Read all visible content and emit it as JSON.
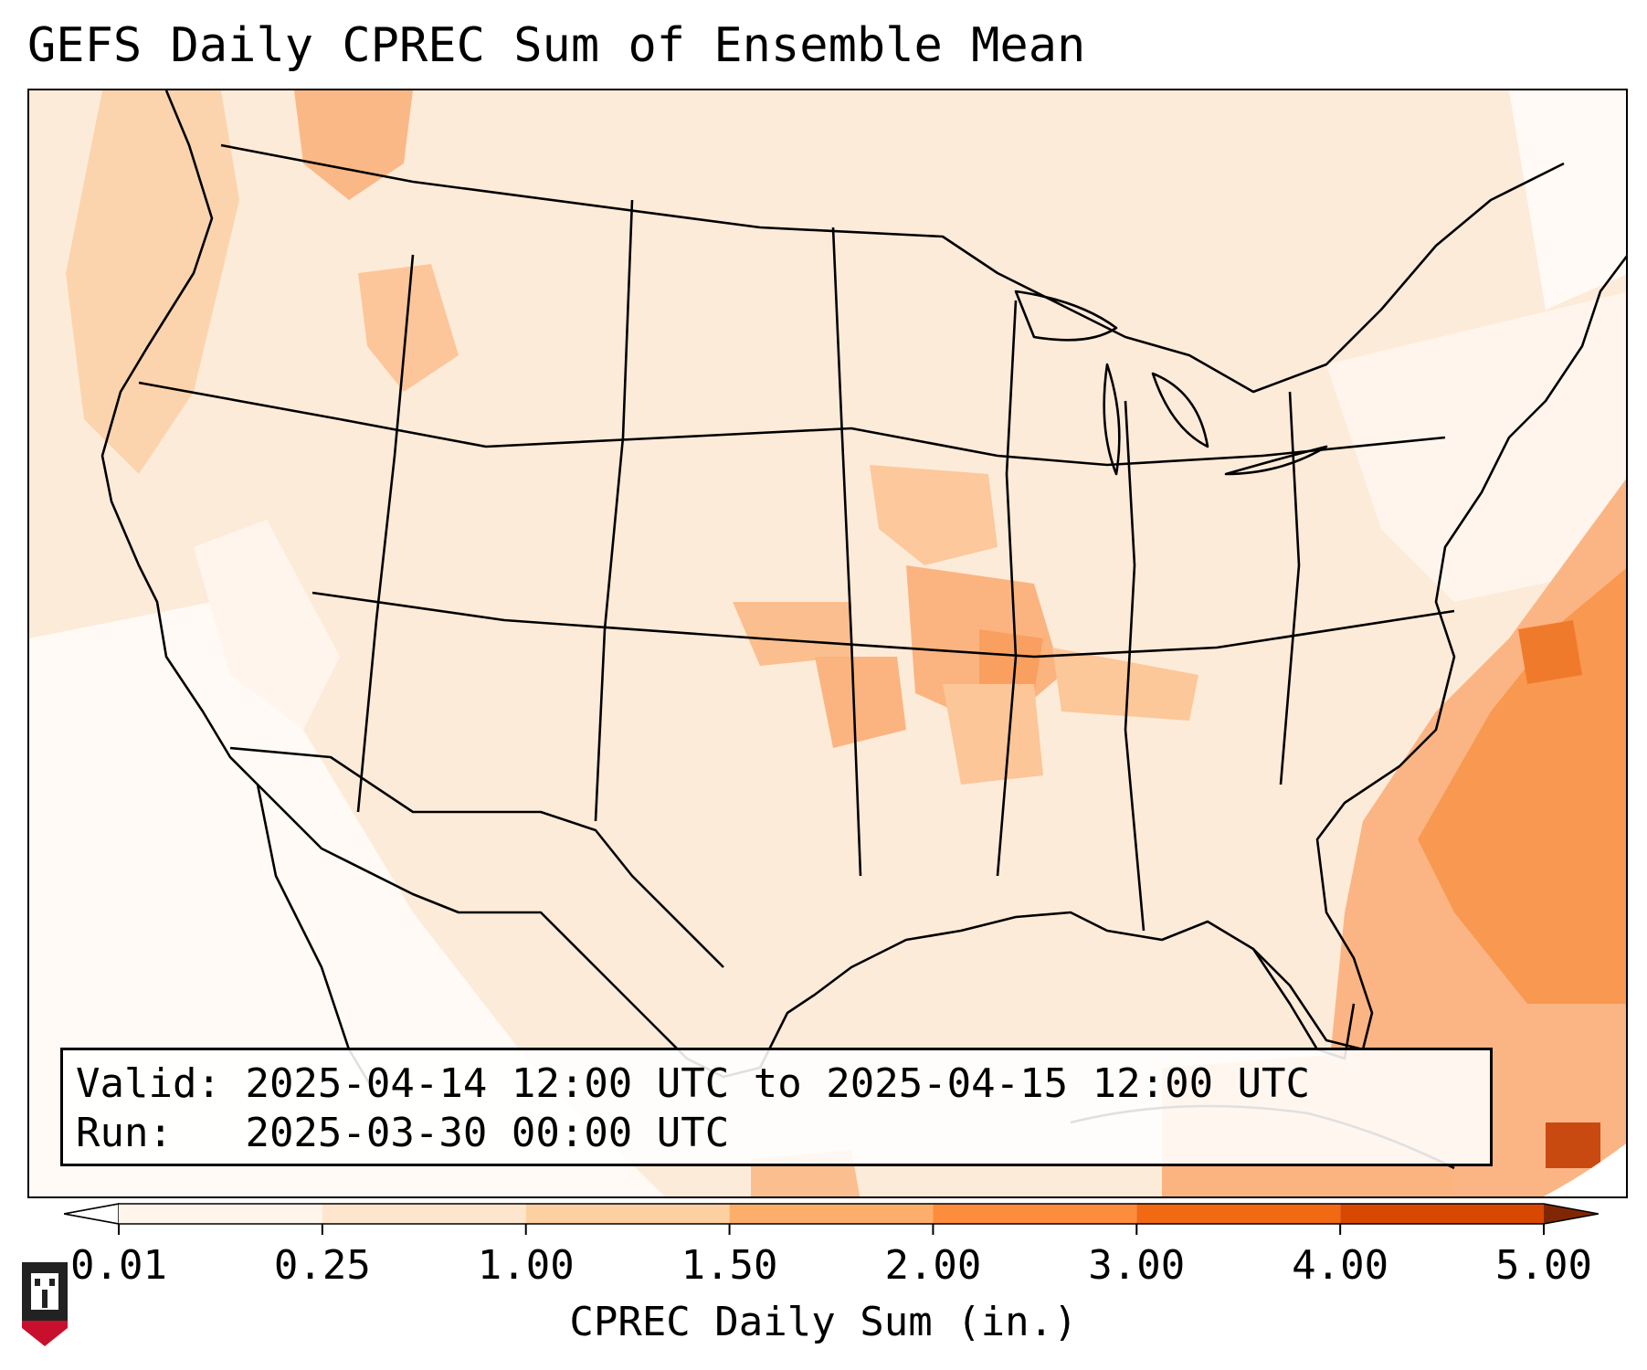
{
  "title": "GEFS Daily CPREC Sum of Ensemble Mean",
  "info": {
    "valid_label": "Valid:",
    "valid_value": "2025-04-14 12:00 UTC to 2025-04-15 12:00 UTC",
    "run_label": "Run:",
    "run_value": "2025-03-30 00:00 UTC"
  },
  "colorbar": {
    "label": "CPREC Daily Sum (in.)",
    "ticks": [
      "0.01",
      "0.25",
      "1.00",
      "1.50",
      "2.00",
      "3.00",
      "4.00",
      "5.00"
    ],
    "colors": [
      "#fff5eb",
      "#fee6ce",
      "#fdd0a2",
      "#fdae6b",
      "#fd8d3c",
      "#f16913",
      "#d94801",
      "#8c2d04"
    ],
    "under_color": "#ffffff",
    "over_color": "#7f2704"
  },
  "logo": {
    "text": "NIU",
    "colors": {
      "red": "#c8102e",
      "dark": "#222222"
    }
  }
}
